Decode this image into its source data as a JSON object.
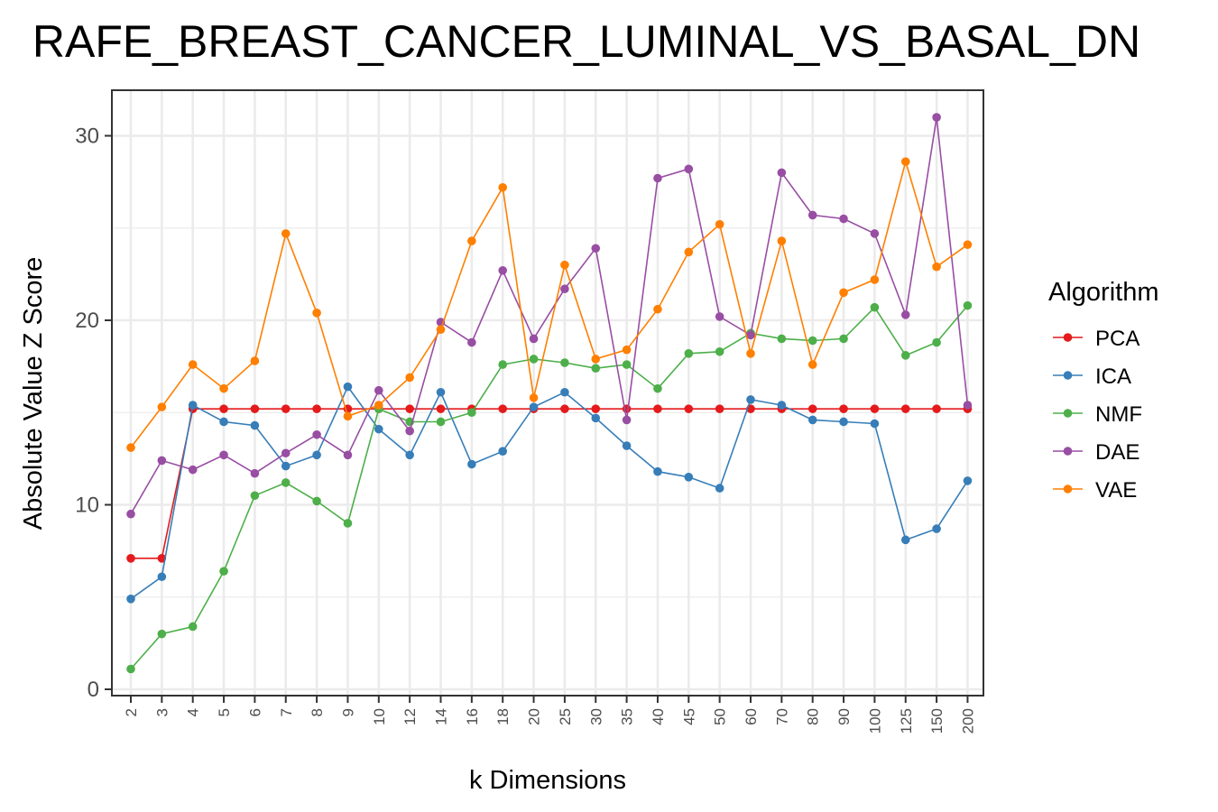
{
  "chart_data": {
    "type": "line",
    "title": "RAFE_BREAST_CANCER_LUMINAL_VS_BASAL_DN",
    "xlabel": "k Dimensions",
    "ylabel": "Absolute Value Z Score",
    "ylim": [
      0,
      32
    ],
    "yticks": [
      "0",
      "10",
      "20",
      "30"
    ],
    "grid": true,
    "legend_position": "right",
    "legend_title": "Algorithm",
    "categories": [
      "2",
      "3",
      "4",
      "5",
      "6",
      "7",
      "8",
      "9",
      "10",
      "12",
      "14",
      "16",
      "18",
      "20",
      "25",
      "30",
      "35",
      "40",
      "45",
      "50",
      "60",
      "70",
      "80",
      "90",
      "100",
      "125",
      "150",
      "200"
    ],
    "series": [
      {
        "name": "PCA",
        "color": "#E41A1C",
        "values": [
          7.1,
          7.1,
          15.2,
          15.2,
          15.2,
          15.2,
          15.2,
          15.2,
          15.2,
          15.2,
          15.2,
          15.2,
          15.2,
          15.2,
          15.2,
          15.2,
          15.2,
          15.2,
          15.2,
          15.2,
          15.2,
          15.2,
          15.2,
          15.2,
          15.2,
          15.2,
          15.2,
          15.2
        ]
      },
      {
        "name": "ICA",
        "color": "#377EB8",
        "values": [
          4.9,
          6.1,
          15.4,
          14.5,
          14.3,
          12.1,
          12.7,
          16.4,
          14.1,
          12.7,
          16.1,
          12.2,
          12.9,
          15.3,
          16.1,
          14.7,
          13.2,
          11.8,
          11.5,
          10.9,
          15.7,
          15.4,
          14.6,
          14.5,
          14.4,
          8.1,
          8.7,
          11.3
        ]
      },
      {
        "name": "NMF",
        "color": "#4DAF4A",
        "values": [
          1.1,
          3.0,
          3.4,
          6.4,
          10.5,
          11.2,
          10.2,
          9.0,
          15.2,
          14.5,
          14.5,
          15.0,
          17.6,
          17.9,
          17.7,
          17.4,
          17.6,
          16.3,
          18.2,
          18.3,
          19.3,
          19.0,
          18.9,
          19.0,
          20.7,
          18.1,
          18.8,
          20.8
        ]
      },
      {
        "name": "DAE",
        "color": "#984EA3",
        "values": [
          9.5,
          12.4,
          11.9,
          12.7,
          11.7,
          12.8,
          13.8,
          12.7,
          16.2,
          14.0,
          19.9,
          18.8,
          22.7,
          19.0,
          21.7,
          23.9,
          14.6,
          27.7,
          28.2,
          20.2,
          19.2,
          28.0,
          25.7,
          25.5,
          24.7,
          20.3,
          31.0,
          15.4
        ]
      },
      {
        "name": "VAE",
        "color": "#FF7F00",
        "values": [
          13.1,
          15.3,
          17.6,
          16.3,
          17.8,
          24.7,
          20.4,
          14.8,
          15.4,
          16.9,
          19.5,
          24.3,
          27.2,
          15.8,
          23.0,
          17.9,
          18.4,
          20.6,
          23.7,
          25.2,
          18.2,
          24.3,
          17.6,
          21.5,
          22.2,
          28.6,
          22.9,
          24.1
        ]
      }
    ]
  }
}
